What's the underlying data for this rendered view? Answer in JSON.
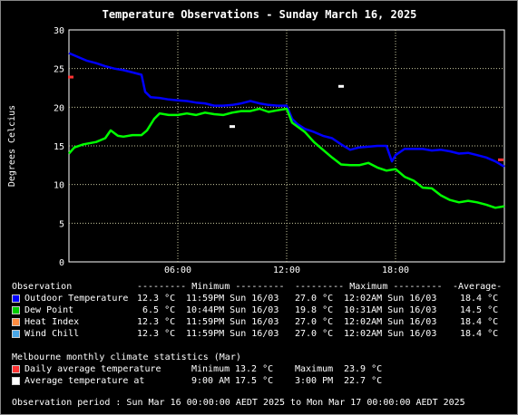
{
  "chart_data": {
    "type": "line",
    "title": "Temperature Observations - Sunday March 16, 2025",
    "ylabel": "Degrees Celcius",
    "xlabel": "",
    "ylim": [
      0,
      30
    ],
    "yticks": [
      "0",
      "5",
      "10",
      "15",
      "20",
      "25",
      "30"
    ],
    "xticks": [
      "06:00",
      "12:00",
      "18:00"
    ],
    "xtick_hours": [
      6,
      12,
      18
    ],
    "xlim_hours": [
      0,
      24
    ],
    "grid": true,
    "series": [
      {
        "name": "Outdoor Temperature",
        "color": "#0000ff",
        "x": [
          0,
          0.5,
          1,
          1.5,
          2,
          2.5,
          3,
          3.5,
          4,
          4.2,
          4.5,
          5,
          5.5,
          6,
          6.5,
          7,
          7.5,
          8,
          8.5,
          9,
          9.5,
          10,
          10.5,
          11,
          11.5,
          12,
          12.3,
          12.6,
          13,
          13.5,
          14,
          14.5,
          15,
          15.5,
          16,
          16.5,
          17,
          17.5,
          17.8,
          18,
          18.5,
          19,
          19.5,
          20,
          20.5,
          21,
          21.5,
          22,
          22.5,
          23,
          23.5,
          24
        ],
        "y": [
          27.0,
          26.5,
          26.0,
          25.7,
          25.3,
          25.0,
          24.8,
          24.5,
          24.2,
          22.0,
          21.3,
          21.2,
          21.0,
          20.9,
          20.8,
          20.6,
          20.5,
          20.2,
          20.2,
          20.3,
          20.5,
          20.8,
          20.5,
          20.3,
          20.2,
          20.2,
          18.5,
          17.8,
          17.2,
          16.8,
          16.3,
          16.0,
          15.2,
          14.5,
          14.8,
          14.9,
          15.0,
          15.0,
          13.0,
          13.8,
          14.6,
          14.6,
          14.6,
          14.4,
          14.5,
          14.3,
          14.0,
          14.1,
          13.8,
          13.5,
          13.0,
          12.3
        ]
      },
      {
        "name": "Dew Point",
        "color": "#00ff00",
        "x": [
          0,
          0.3,
          0.8,
          1.5,
          2,
          2.3,
          2.7,
          3,
          3.5,
          4,
          4.3,
          4.7,
          5,
          5.5,
          6,
          6.5,
          7,
          7.5,
          8,
          8.5,
          9,
          9.5,
          10,
          10.5,
          11,
          11.5,
          12,
          12.3,
          13,
          13.5,
          14,
          14.5,
          15,
          15.5,
          16,
          16.5,
          17,
          17.5,
          18,
          18.5,
          19,
          19.5,
          20,
          20.5,
          21,
          21.5,
          22,
          22.5,
          23,
          23.5,
          24
        ],
        "y": [
          14.0,
          14.8,
          15.2,
          15.5,
          16.0,
          17.0,
          16.3,
          16.2,
          16.4,
          16.4,
          17.0,
          18.5,
          19.2,
          19.0,
          19.0,
          19.2,
          19.0,
          19.3,
          19.1,
          19.0,
          19.3,
          19.5,
          19.5,
          19.8,
          19.4,
          19.6,
          19.8,
          18.0,
          16.8,
          15.5,
          14.5,
          13.5,
          12.6,
          12.5,
          12.5,
          12.8,
          12.2,
          11.8,
          12.0,
          11.0,
          10.5,
          9.6,
          9.5,
          8.6,
          8.0,
          7.7,
          7.9,
          7.7,
          7.4,
          7.0,
          7.2
        ]
      }
    ],
    "markers": [
      {
        "name": "Daily average temperature",
        "color": "#ff3333",
        "points": [
          {
            "x": 0.1,
            "y": 23.9
          },
          {
            "x": 23.8,
            "y": 13.2
          }
        ]
      },
      {
        "name": "Average temperature at",
        "color": "#ffffff",
        "points": [
          {
            "x": 9.0,
            "y": 17.5
          },
          {
            "x": 15.0,
            "y": 22.7
          }
        ]
      }
    ]
  },
  "table": {
    "header": {
      "observation": "Observation",
      "minimum": "--------- Minimum ---------",
      "maximum": "--------- Maximum ---------",
      "average": "-Average-"
    },
    "rows": [
      {
        "color": "#0000ff",
        "name": "Outdoor Temperature",
        "min_val": "12.3 °C",
        "min_time": "11:59PM Sun 16/03",
        "max_val": "27.0 °C",
        "max_time": "12:02AM Sun 16/03",
        "avg": "18.4 °C"
      },
      {
        "color": "#00cc00",
        "name": "Dew Point",
        "min_val": "6.5 °C",
        "min_time": "10:44PM Sun 16/03",
        "max_val": "19.8 °C",
        "max_time": "10:31AM Sun 16/03",
        "avg": "14.5 °C"
      },
      {
        "color": "#ff8c40",
        "name": "Heat Index",
        "min_val": "12.3 °C",
        "min_time": "11:59PM Sun 16/03",
        "max_val": "27.0 °C",
        "max_time": "12:02AM Sun 16/03",
        "avg": "18.4 °C"
      },
      {
        "color": "#4aa8e8",
        "name": "Wind Chill",
        "min_val": "12.3 °C",
        "min_time": "11:59PM Sun 16/03",
        "max_val": "27.0 °C",
        "max_time": "12:02AM Sun 16/03",
        "avg": "18.4 °C"
      }
    ]
  },
  "climate": {
    "heading": "Melbourne monthly climate statistics (Mar)",
    "rows": [
      {
        "color": "#ff3333",
        "label": "Daily average temperature",
        "c1": "Minimum",
        "v1": "13.2 °C",
        "c2": "Maximum",
        "v2": "23.9 °C"
      },
      {
        "color": "#ffffff",
        "label": "Average temperature at",
        "c1": "9:00 AM",
        "v1": "17.5 °C",
        "c2": "3:00 PM",
        "v2": "22.7 °C"
      }
    ]
  },
  "period": "Observation period : Sun Mar 16 00:00:00 AEDT 2025 to Mon Mar 17 00:00:00 AEDT 2025"
}
